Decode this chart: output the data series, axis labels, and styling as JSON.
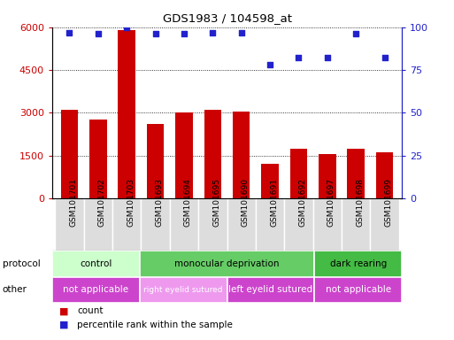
{
  "title": "GDS1983 / 104598_at",
  "samples": [
    "GSM101701",
    "GSM101702",
    "GSM101703",
    "GSM101693",
    "GSM101694",
    "GSM101695",
    "GSM101690",
    "GSM101691",
    "GSM101692",
    "GSM101697",
    "GSM101698",
    "GSM101699"
  ],
  "counts": [
    3100,
    2750,
    5900,
    2600,
    3000,
    3100,
    3050,
    1200,
    1750,
    1550,
    1750,
    1600
  ],
  "percentiles": [
    97,
    96,
    100,
    96,
    96,
    97,
    97,
    78,
    82,
    82,
    96,
    82
  ],
  "ylim_left": [
    0,
    6000
  ],
  "ylim_right": [
    0,
    100
  ],
  "yticks_left": [
    0,
    1500,
    3000,
    4500,
    6000
  ],
  "yticks_right": [
    0,
    25,
    50,
    75,
    100
  ],
  "bar_color": "#cc0000",
  "dot_color": "#2222cc",
  "protocol_groups": [
    {
      "label": "control",
      "start": 0,
      "end": 3,
      "color": "#ccffcc"
    },
    {
      "label": "monocular deprivation",
      "start": 3,
      "end": 9,
      "color": "#66cc66"
    },
    {
      "label": "dark rearing",
      "start": 9,
      "end": 12,
      "color": "#44bb44"
    }
  ],
  "other_groups": [
    {
      "label": "not applicable",
      "start": 0,
      "end": 3,
      "color": "#cc44cc"
    },
    {
      "label": "right eyelid sutured",
      "start": 3,
      "end": 6,
      "color": "#ee99ee"
    },
    {
      "label": "left eyelid sutured",
      "start": 6,
      "end": 9,
      "color": "#cc44cc"
    },
    {
      "label": "not applicable",
      "start": 9,
      "end": 12,
      "color": "#cc44cc"
    }
  ],
  "left_axis_color": "#cc0000",
  "right_axis_color": "#2222cc",
  "xlabel_bg": "#cccccc",
  "fig_width": 5.13,
  "fig_height": 3.84,
  "dpi": 100
}
